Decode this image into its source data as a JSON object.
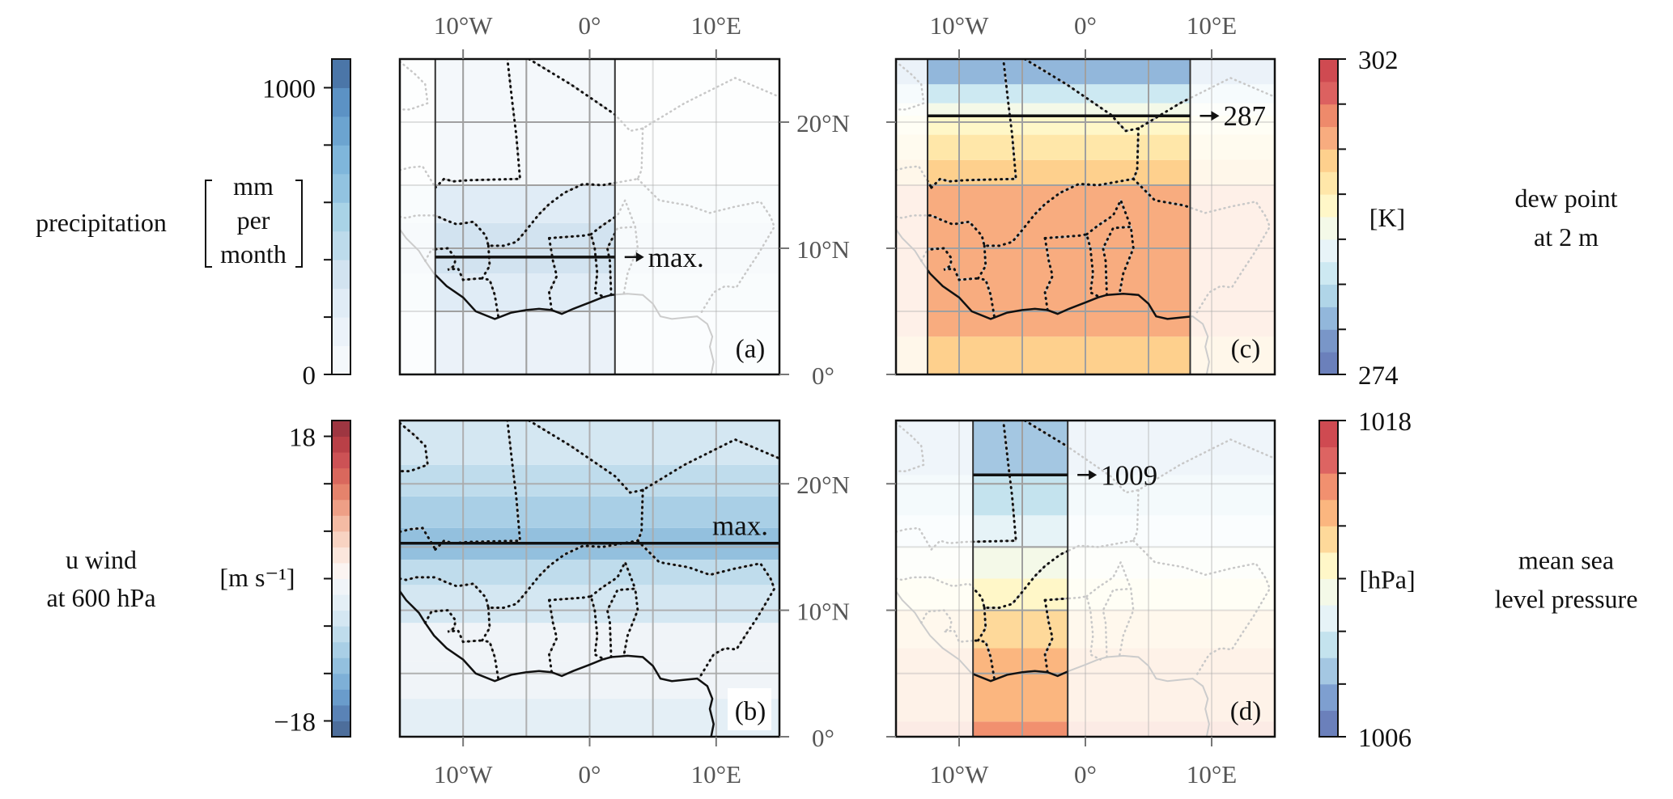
{
  "chart_data": {
    "type": "heatmap",
    "title": "",
    "map_extent": {
      "lon": [
        -15,
        15
      ],
      "lat": [
        0,
        25
      ]
    },
    "lon_ticks": [
      {
        "value": -10,
        "label": "10°W"
      },
      {
        "value": 0,
        "label": "0°"
      },
      {
        "value": 10,
        "label": "10°E"
      }
    ],
    "lat_ticks": [
      {
        "value": 0,
        "label": "0°"
      },
      {
        "value": 10,
        "label": "10°N"
      },
      {
        "value": 20,
        "label": "20°N"
      }
    ],
    "panels": [
      {
        "id": "a",
        "label": "(a)",
        "variable": "precipitation",
        "units_lines": [
          "mm",
          "per",
          "month"
        ],
        "side_label_lines": [
          "precipitation"
        ],
        "colormap": "Blues",
        "colorbar": {
          "vmin": 0,
          "vmax": 1100,
          "step": 100,
          "ticks": [
            0,
            200,
            400,
            600,
            800,
            1000
          ],
          "tick_labels": [
            "0",
            "",
            "",
            "",
            "",
            "1000"
          ],
          "colors": [
            "#f4f8fb",
            "#ebf2f9",
            "#e0ecf6",
            "#d2e3f0",
            "#bddbeb",
            "#a9d3e6",
            "#92c3e0",
            "#7fb6db",
            "#6ca4d0",
            "#5c92c4",
            "#4b76a8"
          ]
        },
        "highlight_box": {
          "lon": [
            -12.2,
            2.0
          ],
          "lat": [
            0,
            25
          ]
        },
        "marker_line": {
          "lat": 9.3,
          "annotation": "max.",
          "arrow": true
        },
        "field_bands": [
          {
            "lat": [
              0,
              5
            ],
            "level": 100
          },
          {
            "lat": [
              5,
              8
            ],
            "level": 200
          },
          {
            "lat": [
              8,
              12
            ],
            "level": 300
          },
          {
            "lat": [
              12,
              15
            ],
            "level": 200
          },
          {
            "lat": [
              15,
              25
            ],
            "level": 0
          }
        ]
      },
      {
        "id": "b",
        "label": "(b)",
        "variable": "u wind at 600 hPa",
        "units": "[m s⁻¹]",
        "side_label_lines": [
          "u wind",
          "at 600 hPa"
        ],
        "colormap": "RdBu_r",
        "colorbar": {
          "vmin": -20,
          "vmax": 20,
          "step": 2,
          "ticks": [
            -18,
            -12,
            -6,
            0,
            6,
            12,
            18
          ],
          "tick_labels": [
            "−18",
            "",
            "",
            "",
            "",
            "",
            "18"
          ],
          "colors": [
            "#4d6e9b",
            "#5a83b6",
            "#6a9ccb",
            "#7eb0d7",
            "#93c0de",
            "#a9cfe6",
            "#bfdcec",
            "#d4e7f2",
            "#e4eff6",
            "#f0f4f8",
            "#fbf4f1",
            "#fbe6dc",
            "#f8d3c2",
            "#f4bba4",
            "#ee9f86",
            "#e5836c",
            "#d9685d",
            "#cc5255",
            "#b94047",
            "#9e3641"
          ]
        },
        "highlight_box": null,
        "marker_line": {
          "lat": 15.3,
          "annotation": "max.",
          "arrow": false
        },
        "field_bands": [
          {
            "lat": [
              0,
              3
            ],
            "level": -3
          },
          {
            "lat": [
              3,
              6
            ],
            "level": -1
          },
          {
            "lat": [
              6,
              9
            ],
            "level": -1
          },
          {
            "lat": [
              9,
              12
            ],
            "level": -5
          },
          {
            "lat": [
              12,
              14
            ],
            "level": -7
          },
          {
            "lat": [
              14,
              16.5
            ],
            "level": -11
          },
          {
            "lat": [
              16.5,
              19
            ],
            "level": -9
          },
          {
            "lat": [
              19,
              21.5
            ],
            "level": -7
          },
          {
            "lat": [
              21.5,
              25
            ],
            "level": -5
          }
        ]
      },
      {
        "id": "c",
        "label": "(c)",
        "variable": "dew point at 2 m",
        "units": "[K]",
        "side_label_lines": [
          "dew point",
          "at 2 m"
        ],
        "colormap": "RdYlBu_r",
        "colorbar": {
          "vmin": 274,
          "vmax": 302,
          "step": 2,
          "ticks": [
            274,
            278,
            282,
            286,
            290,
            294,
            298,
            302
          ],
          "tick_labels": [
            "274",
            "",
            "",
            "",
            "",
            "",
            "",
            "302"
          ],
          "colors": [
            "#6b80bb",
            "#7996c8",
            "#92b7db",
            "#b0d5e8",
            "#cde9f2",
            "#e8f4f8",
            "#f4f9e8",
            "#fff7c8",
            "#ffe7a9",
            "#fed08d",
            "#f8ac7f",
            "#ee8a6b",
            "#dc6160",
            "#cf4a51"
          ]
        },
        "highlight_box": {
          "lon": [
            -12.5,
            8.3
          ],
          "lat": [
            0,
            25
          ]
        },
        "marker_line": {
          "lat": 20.5,
          "annotation": "287",
          "arrow": true
        },
        "field_bands": [
          {
            "lat": [
              0,
              3
            ],
            "level": 293
          },
          {
            "lat": [
              3,
              15
            ],
            "level": 295
          },
          {
            "lat": [
              15,
              17
            ],
            "level": 293
          },
          {
            "lat": [
              17,
              19
            ],
            "level": 291
          },
          {
            "lat": [
              19,
              20.5
            ],
            "level": 289
          },
          {
            "lat": [
              20.5,
              21.5
            ],
            "level": 287
          },
          {
            "lat": [
              21.5,
              23
            ],
            "level": 283
          },
          {
            "lat": [
              23,
              25
            ],
            "level": 279
          }
        ]
      },
      {
        "id": "d",
        "label": "(d)",
        "variable": "mean sea level pressure",
        "units": "[hPa]",
        "side_label_lines": [
          "mean sea",
          "level pressure"
        ],
        "colormap": "RdYlBu_r",
        "colorbar": {
          "vmin": 1006,
          "vmax": 1018,
          "step": 1,
          "ticks": [
            1006,
            1008,
            1010,
            1012,
            1014,
            1016,
            1018
          ],
          "tick_labels": [
            "1006",
            "",
            "",
            "",
            "",
            "",
            "1018"
          ],
          "colors": [
            "#6b80bb",
            "#7e9fd0",
            "#a4c7e2",
            "#c4e3ee",
            "#e6f3f7",
            "#f4f9e8",
            "#fff7c8",
            "#fed99a",
            "#fbb67f",
            "#f1906f",
            "#dd6462",
            "#cf4a51"
          ]
        },
        "highlight_box": {
          "lon": [
            -8.9,
            -1.4
          ],
          "lat": [
            0,
            25
          ]
        },
        "marker_line": {
          "lat": 20.7,
          "annotation": "1009",
          "arrow": true
        },
        "field_bands": [
          {
            "lat": [
              0,
              1.2
            ],
            "level": 1015.5
          },
          {
            "lat": [
              1.2,
              7
            ],
            "level": 1014.5
          },
          {
            "lat": [
              7,
              10
            ],
            "level": 1013.5
          },
          {
            "lat": [
              10,
              12.5
            ],
            "level": 1012.5
          },
          {
            "lat": [
              12.5,
              15
            ],
            "level": 1011.5
          },
          {
            "lat": [
              15,
              17.5
            ],
            "level": 1010.5
          },
          {
            "lat": [
              17.5,
              20.7
            ],
            "level": 1009.5
          },
          {
            "lat": [
              20.7,
              25
            ],
            "level": 1008.5
          }
        ]
      }
    ]
  }
}
